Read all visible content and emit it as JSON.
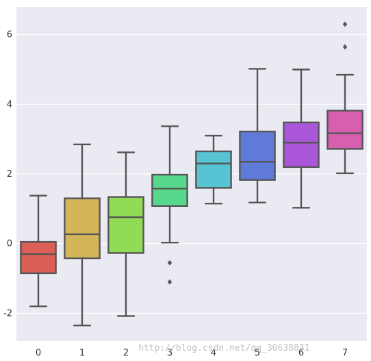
{
  "chart_data": {
    "type": "box",
    "title": "",
    "xlabel": "",
    "ylabel": "",
    "categories": [
      "0",
      "1",
      "2",
      "3",
      "4",
      "5",
      "6",
      "7"
    ],
    "ylim": [
      -2.8,
      6.8
    ],
    "yticks": [
      "-2",
      "0",
      "2",
      "4",
      "6"
    ],
    "grid": true,
    "background": "#eaeaf2",
    "boxes": [
      {
        "category": "0",
        "whisker_low": -1.8,
        "q1": -0.85,
        "median": -0.3,
        "q3": 0.05,
        "whisker_high": 1.38,
        "outliers": [],
        "color": "#db5f57"
      },
      {
        "category": "1",
        "whisker_low": -2.35,
        "q1": -0.42,
        "median": 0.27,
        "q3": 1.3,
        "whisker_high": 2.85,
        "outliers": [],
        "color": "#d3b55a"
      },
      {
        "category": "2",
        "whisker_low": -2.08,
        "q1": -0.27,
        "median": 0.76,
        "q3": 1.34,
        "whisker_high": 2.62,
        "outliers": [],
        "color": "#91db57"
      },
      {
        "category": "3",
        "whisker_low": 0.03,
        "q1": 1.08,
        "median": 1.58,
        "q3": 1.98,
        "whisker_high": 3.37,
        "outliers": [
          -0.55,
          -1.1
        ],
        "color": "#57d88c"
      },
      {
        "category": "4",
        "whisker_low": 1.15,
        "q1": 1.6,
        "median": 2.3,
        "q3": 2.65,
        "whisker_high": 3.1,
        "outliers": [],
        "color": "#57c4d3"
      },
      {
        "category": "5",
        "whisker_low": 1.18,
        "q1": 1.83,
        "median": 2.35,
        "q3": 3.22,
        "whisker_high": 5.02,
        "outliers": [],
        "color": "#5f7ad8"
      },
      {
        "category": "6",
        "whisker_low": 1.03,
        "q1": 2.2,
        "median": 2.9,
        "q3": 3.48,
        "whisker_high": 5.0,
        "outliers": [],
        "color": "#a957d8"
      },
      {
        "category": "7",
        "whisker_low": 2.02,
        "q1": 2.72,
        "median": 3.17,
        "q3": 3.82,
        "whisker_high": 4.85,
        "outliers": [
          5.65,
          6.3
        ],
        "color": "#d65fb1"
      }
    ]
  },
  "watermark": "http://blog.csdn.net/qq_30638831"
}
